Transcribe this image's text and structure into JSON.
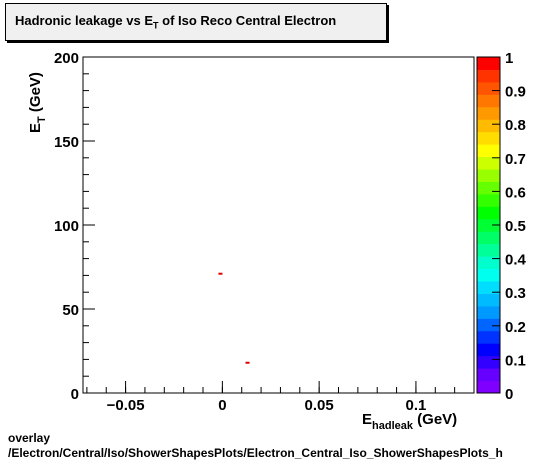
{
  "chart_data": {
    "type": "scatter",
    "title_main": "Hadronic leakage vs E",
    "title_sub": "T",
    "title_rest": " of Iso Reco Central  Electron",
    "xlabel_main": "E",
    "xlabel_sub": "hadleak",
    "xlabel_unit": "(GeV)",
    "ylabel_main": "E",
    "ylabel_sub": "T",
    "ylabel_unit": "(GeV)",
    "xlim": [
      -0.072,
      0.13
    ],
    "ylim": [
      0,
      200
    ],
    "x_ticks": [
      {
        "value": -0.05,
        "label": "−0.05"
      },
      {
        "value": 0,
        "label": "0"
      },
      {
        "value": 0.05,
        "label": "0.05"
      },
      {
        "value": 0.1,
        "label": "0.1"
      }
    ],
    "y_ticks": [
      {
        "value": 0,
        "label": "0"
      },
      {
        "value": 50,
        "label": "50"
      },
      {
        "value": 100,
        "label": "100"
      },
      {
        "value": 150,
        "label": "150"
      },
      {
        "value": 200,
        "label": "200"
      }
    ],
    "points": [
      {
        "x": -0.001,
        "y": 71,
        "z": 1
      },
      {
        "x": 0.013,
        "y": 18,
        "z": 1
      }
    ],
    "colorbar": {
      "range": [
        0,
        1
      ],
      "tick_labels": [
        "0",
        "0.1",
        "0.2",
        "0.3",
        "0.4",
        "0.5",
        "0.6",
        "0.7",
        "0.8",
        "0.9",
        "1"
      ],
      "colors": [
        "#7f00ff",
        "#6600ff",
        "#3300ff",
        "#0000ff",
        "#0033ff",
        "#0066ff",
        "#0099ff",
        "#00bbff",
        "#00ddff",
        "#00ffee",
        "#00ffcc",
        "#00ff99",
        "#00ff66",
        "#00ff33",
        "#00ff00",
        "#33ff00",
        "#66ff00",
        "#99ff00",
        "#ccff00",
        "#ffff00",
        "#ffdd00",
        "#ffbb00",
        "#ff9900",
        "#ff7700",
        "#ff5500",
        "#ff3300",
        "#ff0000"
      ]
    },
    "marker_color": "#dd0000"
  },
  "footer": {
    "line1": "overlay",
    "line2": "/Electron/Central/Iso/ShowerShapesPlots/Electron_Central_Iso_ShowerShapesPlots_h"
  }
}
